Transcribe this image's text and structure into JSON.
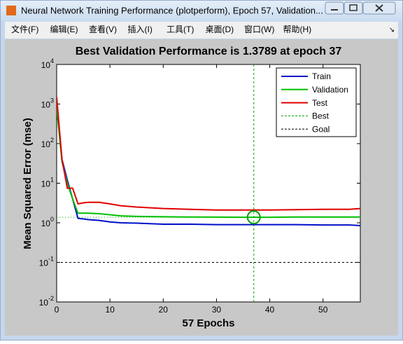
{
  "window": {
    "title": "Neural Network Training Performance (plotperform), Epoch 57, Validation...",
    "menu": [
      "文件(F)",
      "编辑(E)",
      "查看(V)",
      "插入(I)",
      "工具(T)",
      "桌面(D)",
      "窗口(W)",
      "帮助(H)"
    ]
  },
  "chart_data": {
    "type": "line",
    "title": "Best Validation Performance is 1.3789 at epoch 37",
    "xlabel": "57 Epochs",
    "ylabel": "Mean Squared Error  (mse)",
    "x": [
      0,
      1,
      2,
      3,
      4,
      5,
      6,
      8,
      10,
      12,
      15,
      20,
      25,
      30,
      35,
      37,
      40,
      45,
      50,
      55,
      57
    ],
    "series": [
      {
        "name": "Train",
        "color": "#0010c8",
        "values": [
          900,
          40,
          12,
          4,
          1.3,
          1.25,
          1.2,
          1.15,
          1.05,
          1.0,
          0.98,
          0.92,
          0.92,
          0.9,
          0.9,
          0.9,
          0.9,
          0.9,
          0.88,
          0.88,
          0.85
        ]
      },
      {
        "name": "Validation",
        "color": "#00c000",
        "values": [
          800,
          35,
          10,
          4,
          1.75,
          1.75,
          1.75,
          1.7,
          1.6,
          1.5,
          1.45,
          1.42,
          1.4,
          1.39,
          1.38,
          1.3789,
          1.38,
          1.4,
          1.4,
          1.4,
          1.4
        ]
      },
      {
        "name": "Test",
        "color": "#e00000",
        "values": [
          1500,
          40,
          7.5,
          7.5,
          3.0,
          3.2,
          3.3,
          3.3,
          3.0,
          2.7,
          2.5,
          2.3,
          2.2,
          2.1,
          2.1,
          2.1,
          2.1,
          2.15,
          2.2,
          2.2,
          2.3
        ]
      }
    ],
    "best": {
      "name": "Best",
      "epoch": 37,
      "value": 1.3789,
      "color": "#00a000"
    },
    "goal": {
      "name": "Goal",
      "value": 0.1,
      "color": "#000000"
    },
    "xlim": [
      0,
      57
    ],
    "ylim": [
      0.01,
      10000
    ],
    "xticks": [
      0,
      10,
      20,
      30,
      40,
      50
    ],
    "yticks": [
      {
        "value": 0.01,
        "label": "10^-2"
      },
      {
        "value": 0.1,
        "label": "10^-1"
      },
      {
        "value": 1,
        "label": "10^0"
      },
      {
        "value": 10,
        "label": "10^1"
      },
      {
        "value": 100,
        "label": "10^2"
      },
      {
        "value": 1000,
        "label": "10^3"
      },
      {
        "value": 10000,
        "label": "10^4"
      }
    ],
    "log_y": true,
    "legend": "upper right"
  }
}
